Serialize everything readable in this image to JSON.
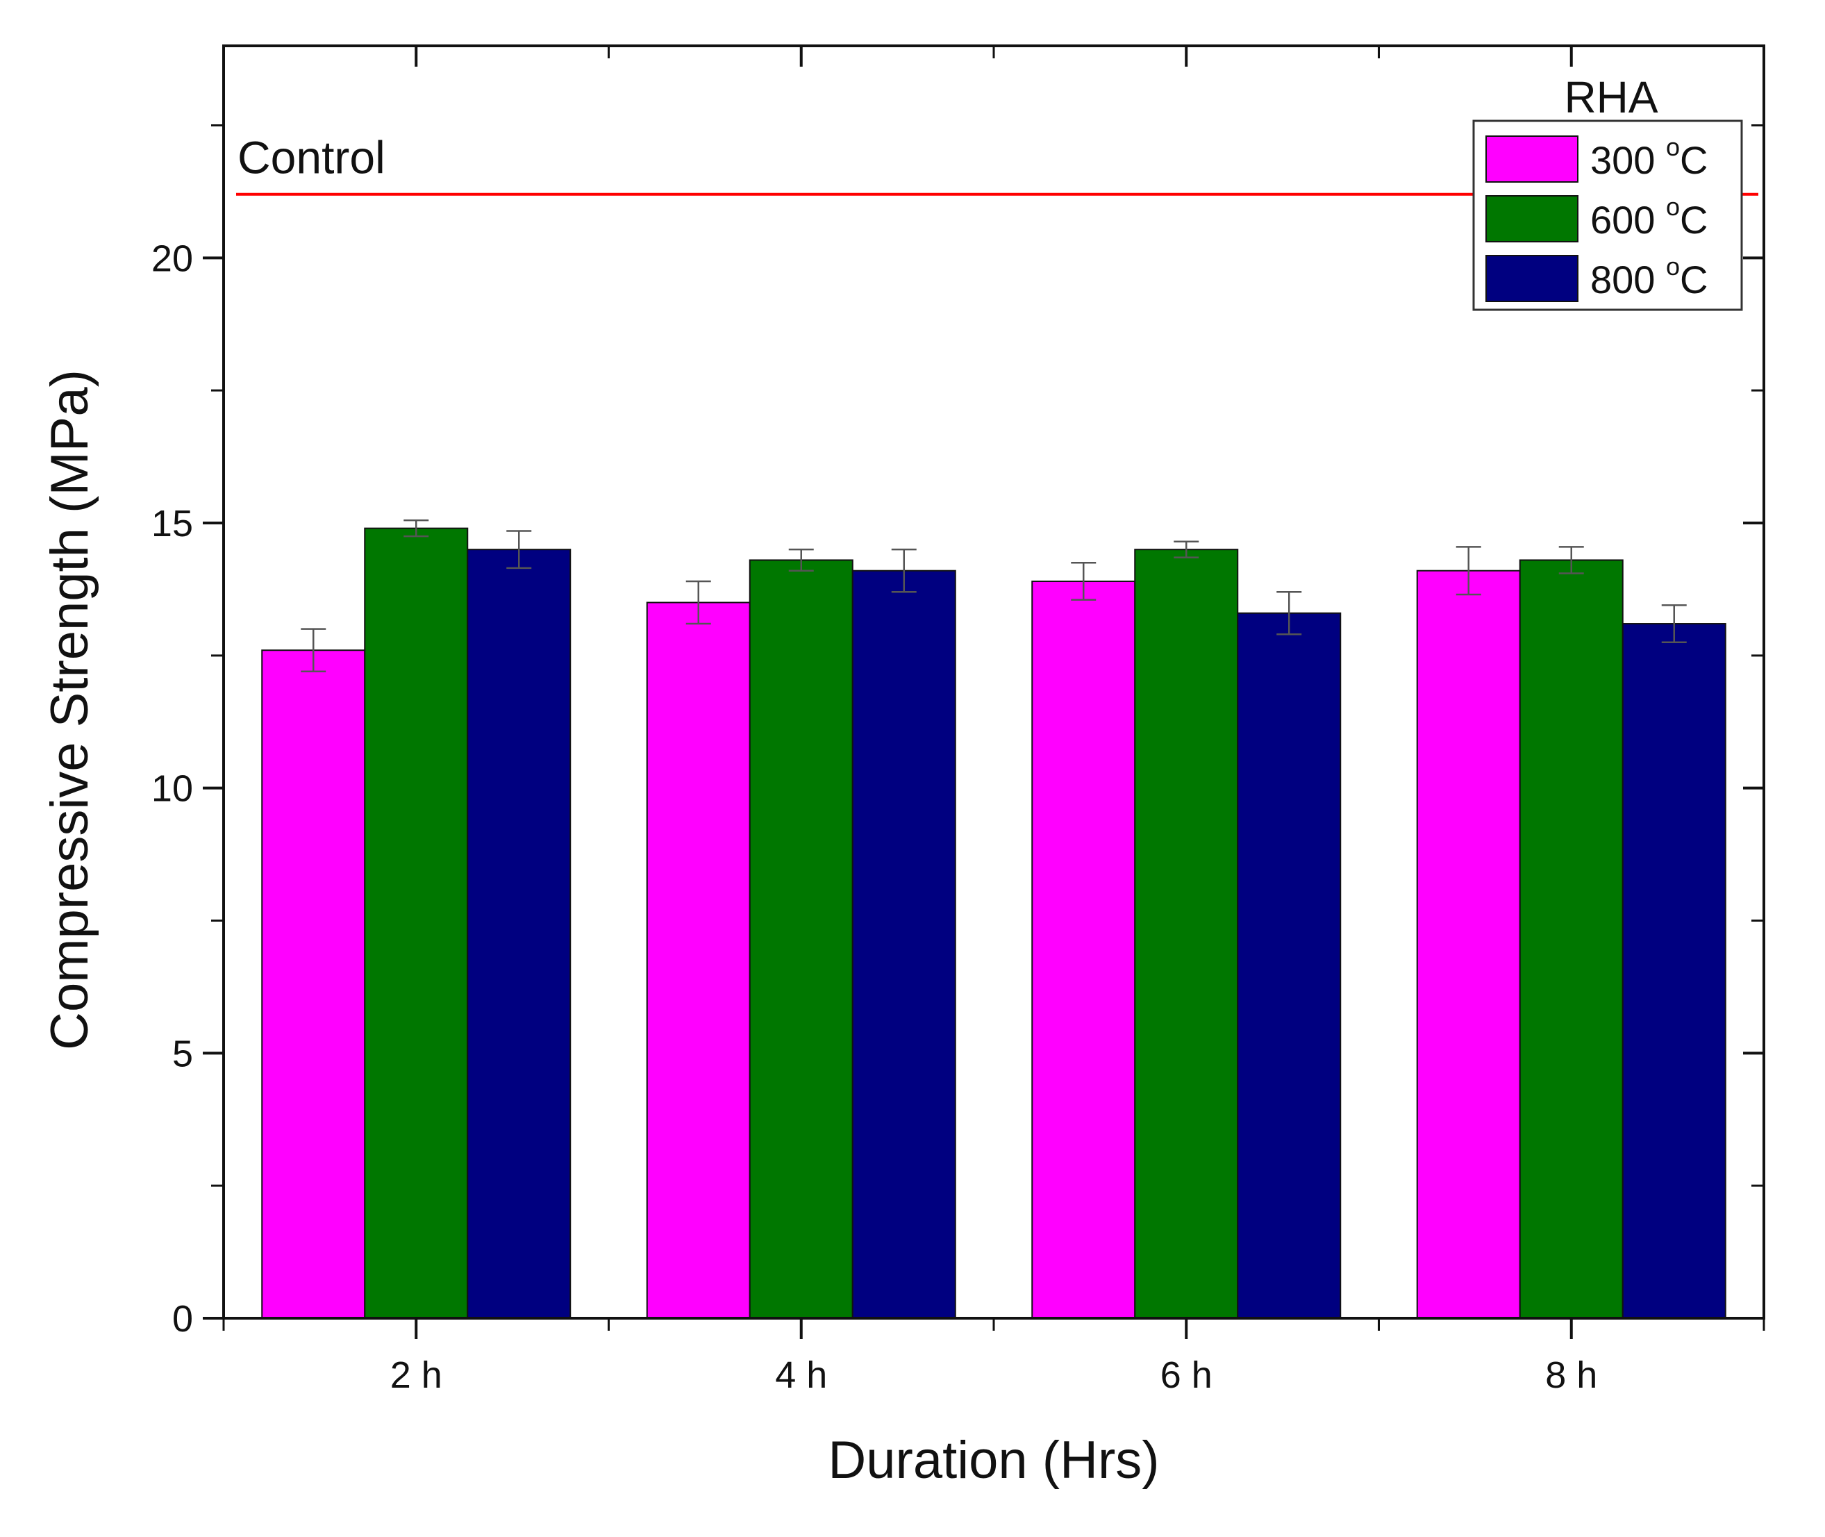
{
  "chart_data": {
    "type": "bar",
    "title": "",
    "xlabel": "Duration (Hrs)",
    "ylabel": "Compressive Strength (MPa)",
    "ylim": [
      0,
      24
    ],
    "y_ticks": [
      0,
      5,
      10,
      15,
      20
    ],
    "grid": false,
    "categories": [
      "2 h",
      "4 h",
      "6 h",
      "8 h"
    ],
    "legend": {
      "title": "RHA",
      "position": "top-right"
    },
    "series": [
      {
        "name": "300",
        "unit_sup": "o",
        "unit": "C",
        "color": "#ff00ff",
        "values": [
          12.6,
          13.5,
          13.9,
          14.1
        ],
        "errors": [
          0.4,
          0.4,
          0.35,
          0.45
        ]
      },
      {
        "name": "600",
        "unit_sup": "o",
        "unit": "C",
        "color": "#007700",
        "values": [
          14.9,
          14.3,
          14.5,
          14.3
        ],
        "errors": [
          0.15,
          0.2,
          0.15,
          0.25
        ]
      },
      {
        "name": "800",
        "unit_sup": "o",
        "unit": "C",
        "color": "#000080",
        "values": [
          14.5,
          14.1,
          13.3,
          13.1
        ],
        "errors": [
          0.35,
          0.4,
          0.4,
          0.35
        ]
      }
    ],
    "reference_line": {
      "label": "Control",
      "value": 21.2,
      "color": "#ff0000"
    }
  }
}
